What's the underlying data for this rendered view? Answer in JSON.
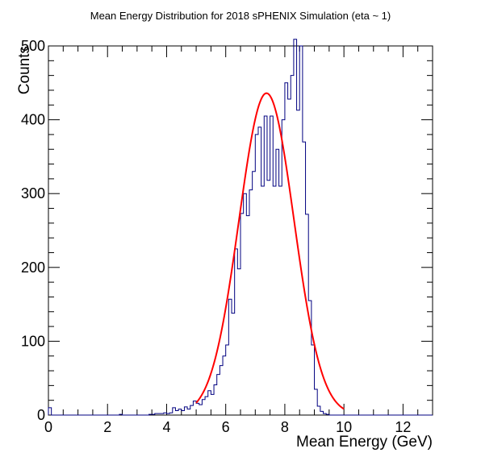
{
  "chart_data": {
    "type": "histogram",
    "title": "Mean Energy Distribution for 2018 sPHENIX Simulation (eta ~ 1)",
    "xlabel": "Mean Energy (GeV)",
    "ylabel": "Counts",
    "xlim": [
      0,
      13
    ],
    "ylim": [
      0,
      500
    ],
    "x_ticks": [
      "0",
      "2",
      "4",
      "6",
      "8",
      "10",
      "12"
    ],
    "y_ticks": [
      "0",
      "100",
      "200",
      "300",
      "400",
      "500"
    ],
    "bin_width": 0.1,
    "histogram": {
      "name": "histogram",
      "color": "#000080",
      "bins": [
        {
          "x": 0.0,
          "y": 10
        },
        {
          "x": 2.4,
          "y": 1
        },
        {
          "x": 3.4,
          "y": 1
        },
        {
          "x": 3.5,
          "y": 1
        },
        {
          "x": 3.6,
          "y": 2
        },
        {
          "x": 3.7,
          "y": 2
        },
        {
          "x": 3.8,
          "y": 2
        },
        {
          "x": 3.9,
          "y": 3
        },
        {
          "x": 4.0,
          "y": 2
        },
        {
          "x": 4.1,
          "y": 3
        },
        {
          "x": 4.2,
          "y": 10
        },
        {
          "x": 4.3,
          "y": 6
        },
        {
          "x": 4.4,
          "y": 8
        },
        {
          "x": 4.5,
          "y": 6
        },
        {
          "x": 4.6,
          "y": 11
        },
        {
          "x": 4.7,
          "y": 8
        },
        {
          "x": 4.8,
          "y": 13
        },
        {
          "x": 4.9,
          "y": 19
        },
        {
          "x": 5.0,
          "y": 16
        },
        {
          "x": 5.1,
          "y": 14
        },
        {
          "x": 5.2,
          "y": 21
        },
        {
          "x": 5.3,
          "y": 25
        },
        {
          "x": 5.4,
          "y": 33
        },
        {
          "x": 5.5,
          "y": 28
        },
        {
          "x": 5.6,
          "y": 41
        },
        {
          "x": 5.7,
          "y": 55
        },
        {
          "x": 5.8,
          "y": 67
        },
        {
          "x": 5.9,
          "y": 80
        },
        {
          "x": 6.0,
          "y": 95
        },
        {
          "x": 6.1,
          "y": 157
        },
        {
          "x": 6.2,
          "y": 138
        },
        {
          "x": 6.3,
          "y": 225
        },
        {
          "x": 6.4,
          "y": 198
        },
        {
          "x": 6.5,
          "y": 273
        },
        {
          "x": 6.6,
          "y": 300
        },
        {
          "x": 6.7,
          "y": 270
        },
        {
          "x": 6.8,
          "y": 305
        },
        {
          "x": 6.9,
          "y": 330
        },
        {
          "x": 7.0,
          "y": 380
        },
        {
          "x": 7.1,
          "y": 390
        },
        {
          "x": 7.2,
          "y": 310
        },
        {
          "x": 7.3,
          "y": 405
        },
        {
          "x": 7.4,
          "y": 318
        },
        {
          "x": 7.5,
          "y": 405
        },
        {
          "x": 7.6,
          "y": 310
        },
        {
          "x": 7.7,
          "y": 360
        },
        {
          "x": 7.8,
          "y": 310
        },
        {
          "x": 7.9,
          "y": 400
        },
        {
          "x": 8.0,
          "y": 450
        },
        {
          "x": 8.1,
          "y": 428
        },
        {
          "x": 8.2,
          "y": 460
        },
        {
          "x": 8.3,
          "y": 509
        },
        {
          "x": 8.4,
          "y": 413
        },
        {
          "x": 8.5,
          "y": 500
        },
        {
          "x": 8.6,
          "y": 370
        },
        {
          "x": 8.7,
          "y": 272
        },
        {
          "x": 8.8,
          "y": 155
        },
        {
          "x": 8.9,
          "y": 95
        },
        {
          "x": 9.0,
          "y": 35
        },
        {
          "x": 9.1,
          "y": 12
        },
        {
          "x": 9.2,
          "y": 5
        },
        {
          "x": 9.3,
          "y": 2
        },
        {
          "x": 9.4,
          "y": 1
        }
      ]
    },
    "fit": {
      "name": "gaussian fit",
      "type": "gaussian",
      "color": "#ff0000",
      "amplitude": 436,
      "mean": 7.38,
      "sigma": 0.93,
      "range": [
        5.0,
        10.0
      ]
    }
  }
}
